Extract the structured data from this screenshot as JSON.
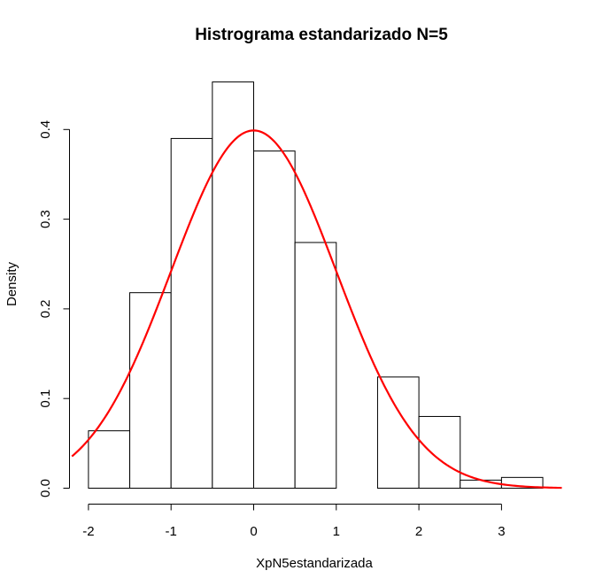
{
  "chart_data": {
    "type": "bar",
    "title": "Histrograma estandarizado N=5",
    "xlabel": "XpN5estandarizada",
    "ylabel": "Density",
    "bins": [
      {
        "x0": -2.0,
        "x1": -1.5,
        "density": 0.064
      },
      {
        "x0": -1.5,
        "x1": -1.0,
        "density": 0.218
      },
      {
        "x0": -1.0,
        "x1": -0.5,
        "density": 0.39
      },
      {
        "x0": -0.5,
        "x1": 0.0,
        "density": 0.453
      },
      {
        "x0": 0.0,
        "x1": 0.5,
        "density": 0.376
      },
      {
        "x0": 0.5,
        "x1": 1.0,
        "density": 0.274
      },
      {
        "x0": 1.0,
        "x1": 1.5,
        "density": 0.0
      },
      {
        "x0": 1.5,
        "x1": 2.0,
        "density": 0.124
      },
      {
        "x0": 2.0,
        "x1": 2.5,
        "density": 0.08
      },
      {
        "x0": 2.5,
        "x1": 3.0,
        "density": 0.009
      },
      {
        "x0": 3.0,
        "x1": 3.5,
        "density": 0.012
      }
    ],
    "x_ticks": [
      "-2",
      "-1",
      "0",
      "1",
      "2",
      "3"
    ],
    "x_tick_values": [
      -2,
      -1,
      0,
      1,
      2,
      3
    ],
    "y_ticks": [
      "0.0",
      "0.1",
      "0.2",
      "0.3",
      "0.4"
    ],
    "y_tick_values": [
      0,
      0.1,
      0.2,
      0.3,
      0.4
    ],
    "xlim": [
      -2.2,
      3.75
    ],
    "ylim": [
      0,
      0.46
    ],
    "overlay_curve": {
      "type": "normal-density",
      "mean": 0,
      "sd": 1,
      "color": "#ff0000"
    },
    "grid": false
  }
}
